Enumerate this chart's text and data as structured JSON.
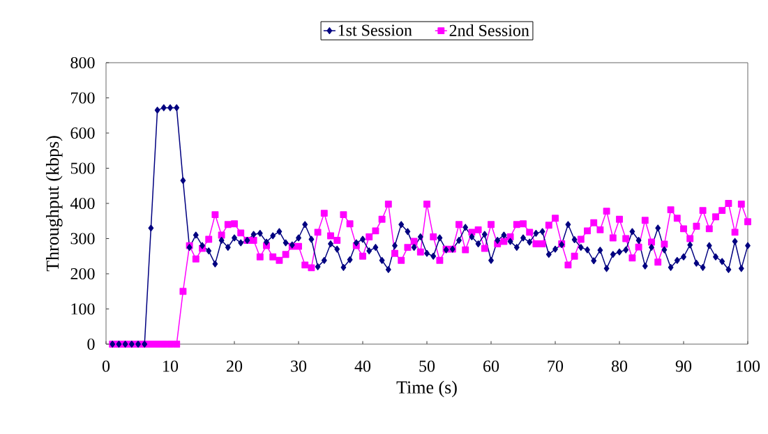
{
  "chart_data": {
    "type": "line",
    "xlabel": "Time (s)",
    "ylabel": "Throughput (kbps)",
    "x": [
      1,
      2,
      3,
      4,
      5,
      6,
      7,
      8,
      9,
      10,
      11,
      12,
      13,
      14,
      15,
      16,
      17,
      18,
      19,
      20,
      21,
      22,
      23,
      24,
      25,
      26,
      27,
      28,
      29,
      30,
      31,
      32,
      33,
      34,
      35,
      36,
      37,
      38,
      39,
      40,
      41,
      42,
      43,
      44,
      45,
      46,
      47,
      48,
      49,
      50,
      51,
      52,
      53,
      54,
      55,
      56,
      57,
      58,
      59,
      60,
      61,
      62,
      63,
      64,
      65,
      66,
      67,
      68,
      69,
      70,
      71,
      72,
      73,
      74,
      75,
      76,
      77,
      78,
      79,
      80,
      81,
      82,
      83,
      84,
      85,
      86,
      87,
      88,
      89,
      90,
      91,
      92,
      93,
      94,
      95,
      96,
      97,
      98,
      99,
      100
    ],
    "series": [
      {
        "name": "1st Session",
        "color": "#000080",
        "marker": "diamond",
        "line_style": "solid",
        "values": [
          0,
          0,
          0,
          0,
          0,
          0,
          330,
          665,
          672,
          672,
          672,
          465,
          275,
          310,
          280,
          265,
          228,
          295,
          275,
          302,
          288,
          295,
          312,
          315,
          290,
          308,
          320,
          288,
          282,
          302,
          340,
          298,
          220,
          238,
          285,
          270,
          218,
          240,
          288,
          298,
          265,
          275,
          238,
          212,
          280,
          340,
          320,
          275,
          305,
          258,
          250,
          302,
          268,
          270,
          295,
          332,
          305,
          285,
          312,
          238,
          295,
          310,
          292,
          275,
          302,
          290,
          315,
          320,
          255,
          270,
          283,
          340,
          297,
          275,
          268,
          237,
          267,
          215,
          255,
          262,
          268,
          320,
          295,
          222,
          275,
          330,
          268,
          218,
          238,
          248,
          282,
          230,
          218,
          280,
          248,
          235,
          212,
          292,
          215,
          280
        ]
      },
      {
        "name": "2nd Session",
        "color": "#ff00ff",
        "marker": "square",
        "line_style": "solid",
        "values": [
          0,
          0,
          0,
          0,
          0,
          0,
          0,
          0,
          0,
          0,
          0,
          150,
          280,
          242,
          272,
          298,
          368,
          310,
          340,
          342,
          316,
          295,
          295,
          248,
          280,
          248,
          238,
          255,
          278,
          278,
          225,
          217,
          318,
          372,
          308,
          295,
          368,
          342,
          280,
          250,
          305,
          322,
          355,
          398,
          258,
          238,
          275,
          292,
          262,
          398,
          305,
          238,
          270,
          270,
          340,
          268,
          318,
          325,
          272,
          340,
          285,
          292,
          305,
          340,
          342,
          318,
          285,
          285,
          338,
          358,
          285,
          225,
          250,
          298,
          322,
          345,
          325,
          378,
          302,
          355,
          300,
          245,
          276,
          352,
          290,
          233,
          284,
          382,
          358,
          328,
          300,
          335,
          380,
          328,
          362,
          380,
          400,
          318,
          398,
          348
        ]
      }
    ],
    "xlim": [
      0,
      100
    ],
    "ylim": [
      0,
      800
    ],
    "xticks": [
      0,
      10,
      20,
      30,
      40,
      50,
      60,
      70,
      80,
      90,
      100
    ],
    "yticks": [
      0,
      100,
      200,
      300,
      400,
      500,
      600,
      700,
      800
    ],
    "grid": false,
    "legend": "top"
  }
}
